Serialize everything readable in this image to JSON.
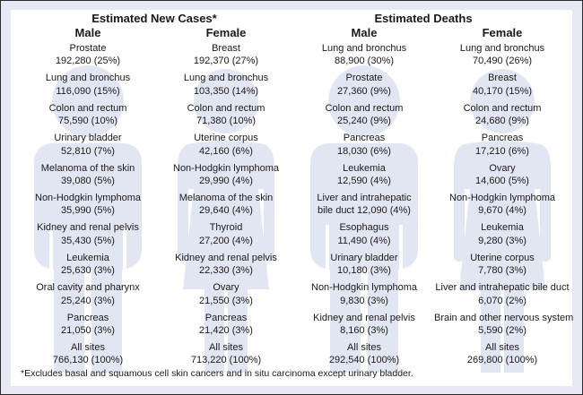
{
  "colors": {
    "silhouette": "#e2e6f3",
    "frame_band": "#e6e9f5",
    "border": "#2a2a2a"
  },
  "new_cases": {
    "title": "Estimated New Cases*",
    "male": {
      "heading": "Male",
      "icon": "male-silhouette",
      "items": [
        {
          "site": "Prostate",
          "value": "192,280 (25%)"
        },
        {
          "site": "Lung and bronchus",
          "value": "116,090 (15%)"
        },
        {
          "site": "Colon and rectum",
          "value": "75,590 (10%)"
        },
        {
          "site": "Urinary bladder",
          "value": "52,810 (7%)"
        },
        {
          "site": "Melanoma of the skin",
          "value": "39,080 (5%)"
        },
        {
          "site": "Non-Hodgkin lymphoma",
          "value": "35,990 (5%)"
        },
        {
          "site": "Kidney and renal pelvis",
          "value": "35,430 (5%)"
        },
        {
          "site": "Leukemia",
          "value": "25,630 (3%)"
        },
        {
          "site": "Oral cavity and pharynx",
          "value": "25,240 (3%)"
        },
        {
          "site": "Pancreas",
          "value": "21,050 (3%)"
        },
        {
          "site": "All sites",
          "value": "766,130 (100%)"
        }
      ]
    },
    "female": {
      "heading": "Female",
      "icon": "female-silhouette",
      "items": [
        {
          "site": "Breast",
          "value": "192,370 (27%)"
        },
        {
          "site": "Lung and bronchus",
          "value": "103,350 (14%)"
        },
        {
          "site": "Colon and rectum",
          "value": "71,380 (10%)"
        },
        {
          "site": "Uterine corpus",
          "value": "42,160 (6%)"
        },
        {
          "site": "Non-Hodgkin lymphoma",
          "value": "29,990 (4%)"
        },
        {
          "site": "Melanoma of the skin",
          "value": "29,640 (4%)"
        },
        {
          "site": "Thyroid",
          "value": "27,200 (4%)"
        },
        {
          "site": "Kidney and renal pelvis",
          "value": "22,330 (3%)"
        },
        {
          "site": "Ovary",
          "value": "21,550 (3%)"
        },
        {
          "site": "Pancreas",
          "value": "21,420 (3%)"
        },
        {
          "site": "All sites",
          "value": "713,220 (100%)"
        }
      ]
    }
  },
  "deaths": {
    "title": "Estimated Deaths",
    "male": {
      "heading": "Male",
      "icon": "male-silhouette",
      "items": [
        {
          "site": "Lung and bronchus",
          "value": "88,900 (30%)"
        },
        {
          "site": "Prostate",
          "value": "27,360 (9%)"
        },
        {
          "site": "Colon and rectum",
          "value": "25,240 (9%)"
        },
        {
          "site": "Pancreas",
          "value": "18,030 (6%)"
        },
        {
          "site": "Leukemia",
          "value": "12,590 (4%)"
        },
        {
          "site": "Liver and intrahepatic",
          "value": "bile duct 12,090 (4%)"
        },
        {
          "site": "Esophagus",
          "value": "11,490 (4%)"
        },
        {
          "site": "Urinary bladder",
          "value": "10,180 (3%)"
        },
        {
          "site": "Non-Hodgkin lymphoma",
          "value": "9,830 (3%)"
        },
        {
          "site": "Kidney and renal pelvis",
          "value": "8,160 (3%)"
        },
        {
          "site": "All sites",
          "value": "292,540 (100%)"
        }
      ]
    },
    "female": {
      "heading": "Female",
      "icon": "female-silhouette",
      "items": [
        {
          "site": "Lung and bronchus",
          "value": "70,490 (26%)"
        },
        {
          "site": "Breast",
          "value": "40,170 (15%)"
        },
        {
          "site": "Colon and rectum",
          "value": "24,680 (9%)"
        },
        {
          "site": "Pancreas",
          "value": "17,210 (6%)"
        },
        {
          "site": "Ovary",
          "value": "14,600 (5%)"
        },
        {
          "site": "Non-Hodgkin lymphoma",
          "value": "9,670 (4%)"
        },
        {
          "site": "Leukemia",
          "value": "9,280 (3%)"
        },
        {
          "site": "Uterine corpus",
          "value": "7,780 (3%)"
        },
        {
          "site": "Liver and intrahepatic bile duct",
          "value": "6,070 (2%)"
        },
        {
          "site": "Brain and other nervous system",
          "value": "5,590 (2%)"
        },
        {
          "site": "All sites",
          "value": "269,800 (100%)"
        }
      ]
    }
  },
  "footnote": "*Excludes basal and squamous cell skin cancers and in situ carcinoma except urinary bladder."
}
